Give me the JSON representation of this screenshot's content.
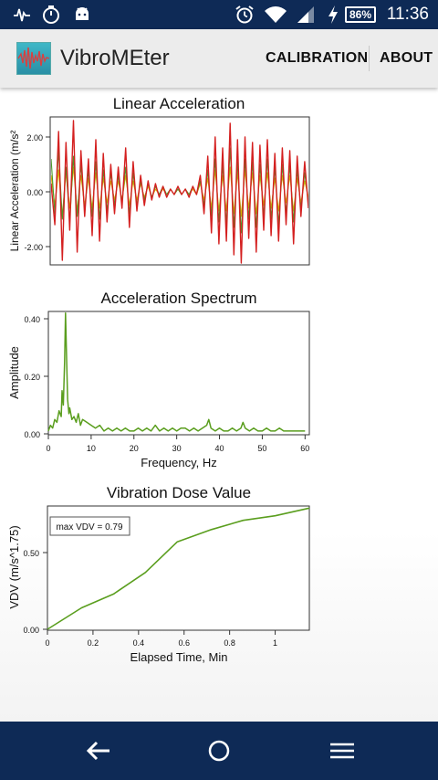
{
  "status_bar": {
    "time": "11:36",
    "battery_percent": "86%",
    "left_icons": [
      "pulse-icon",
      "stopwatch-icon",
      "android-icon"
    ],
    "right_icons": [
      "alarm-icon",
      "wifi-icon",
      "signal-icon",
      "charging-icon"
    ]
  },
  "app_bar": {
    "title": "VibroMEter",
    "menu": {
      "calibration": "CALIBRATION",
      "about": "ABOUT"
    }
  },
  "charts": {
    "acceleration": {
      "title": "Linear Acceleration",
      "ylabel": "Linear Acceleration (m/s²",
      "yticks": [
        "2.00",
        "0.00",
        "-2.00"
      ]
    },
    "spectrum": {
      "title": "Acceleration Spectrum",
      "ylabel": "Amplitude",
      "xlabel": "Frequency, Hz",
      "yticks": [
        "0.40",
        "0.20",
        "0.00"
      ],
      "xticks": [
        "0",
        "10",
        "20",
        "30",
        "40",
        "50",
        "60"
      ]
    },
    "vdv": {
      "title": "Vibration Dose Value",
      "ylabel": "VDV (m/s^1.75)",
      "xlabel": "Elapsed Time, Min",
      "yticks": [
        "0.50",
        "0.00"
      ],
      "xticks": [
        "0",
        "0.2",
        "0.4",
        "0.6",
        "0.8",
        "1"
      ],
      "annotation": "max VDV = 0.79"
    }
  },
  "chart_data": [
    {
      "type": "line",
      "title": "Linear Acceleration",
      "ylabel": "Linear Acceleration (m/s²",
      "ylim": [
        -2.6,
        2.6
      ],
      "series": [
        {
          "color": "#d42020",
          "description_values_note": "oscillating signal",
          "values": [
            0.3,
            -1.2,
            2.2,
            -2.5,
            1.8,
            -1.4,
            2.6,
            -2.2,
            1.5,
            -0.9,
            1.2,
            -1.6,
            1.9,
            -1.8,
            1.4,
            -1.1,
            1.0,
            -0.8,
            0.9,
            -0.6,
            1.6,
            -1.3,
            1.1,
            -0.7,
            0.6,
            -0.5,
            0.4,
            -0.3,
            0.3,
            -0.2,
            0.2,
            -0.2,
            0.1,
            -0.1,
            0.2,
            -0.1,
            0.1,
            -0.2,
            0.2,
            -0.1,
            0.6,
            -0.8,
            1.3,
            -1.5,
            2.0,
            -1.9,
            1.6,
            -1.8,
            2.5,
            -2.3,
            1.9,
            -2.6,
            2.0,
            -1.7,
            1.8,
            -2.2,
            1.7,
            -1.4,
            1.9,
            -1.6,
            1.4,
            -1.8,
            1.6,
            -1.2,
            1.5,
            -1.9,
            1.3,
            -0.9,
            1.1,
            -0.6
          ]
        },
        {
          "color": "#e0b000",
          "values": [
            0.6,
            -0.5,
            0.8,
            -0.9,
            0.7,
            -0.6,
            0.9,
            -0.7,
            0.6,
            -0.5,
            0.5,
            -0.6,
            0.7,
            -0.6,
            0.5,
            -0.4,
            0.4,
            -0.3,
            0.4,
            -0.3,
            0.6,
            -0.5,
            0.4,
            -0.3,
            0.3,
            -0.2,
            0.2,
            -0.2,
            0.1,
            -0.1,
            0.1,
            -0.1,
            0.1,
            -0.1,
            0.1,
            -0.1,
            0.1,
            -0.1,
            0.1,
            -0.1,
            0.3,
            -0.3,
            0.5,
            -0.6,
            0.8,
            -0.7,
            0.6,
            -0.7,
            0.9,
            -0.8,
            0.7,
            -0.9,
            0.8,
            -0.6,
            0.7,
            -0.8,
            0.6,
            -0.5,
            0.7,
            -0.6,
            0.5,
            -0.7,
            0.6,
            -0.4,
            0.6,
            -0.7,
            0.5,
            -0.4,
            0.4,
            -0.2
          ]
        },
        {
          "color": "#4a9a2a",
          "values": [
            1.2,
            -0.8,
            1.5,
            -1.0,
            0.9,
            -1.1,
            1.3,
            -0.9,
            1.0,
            -0.7,
            0.8,
            -0.9,
            1.1,
            -1.0,
            0.8,
            -0.7,
            0.7,
            -0.5,
            0.6,
            -0.4,
            0.9,
            -0.8,
            0.7,
            -0.5,
            0.4,
            -0.3,
            0.3,
            -0.2,
            0.2,
            -0.1,
            0.2,
            -0.1,
            0.1,
            -0.1,
            0.1,
            -0.1,
            0.1,
            -0.1,
            0.2,
            -0.1,
            0.4,
            -0.5,
            0.8,
            -0.9,
            1.2,
            -1.1,
            1.0,
            -1.2,
            1.6,
            -1.3,
            1.1,
            -1.5,
            1.2,
            -1.0,
            1.1,
            -1.3,
            1.0,
            -0.9,
            1.2,
            -1.0,
            0.9,
            -1.2,
            1.0,
            -0.8,
            1.0,
            -1.1,
            0.8,
            -0.6,
            0.7,
            -0.4
          ]
        }
      ]
    },
    {
      "type": "line",
      "title": "Acceleration Spectrum",
      "xlabel": "Frequency, Hz",
      "ylabel": "Amplitude",
      "xlim": [
        0,
        61
      ],
      "ylim": [
        0,
        0.42
      ],
      "series": [
        {
          "color": "#5a9e1e",
          "x": [
            0,
            0.5,
            1,
            1.5,
            2,
            2.5,
            3,
            3.2,
            3.5,
            3.8,
            4.0,
            4.2,
            4.5,
            4.8,
            5,
            5.5,
            6,
            6.5,
            7,
            7.5,
            8,
            9,
            10,
            11,
            12,
            13,
            14,
            15,
            16,
            17,
            18,
            19,
            20,
            21,
            22,
            23,
            24,
            25,
            26,
            27,
            28,
            29,
            30,
            31,
            32,
            33,
            34,
            35,
            36,
            37,
            37.5,
            38,
            39,
            40,
            41,
            42,
            43,
            44,
            45,
            45.5,
            46,
            47,
            48,
            49,
            50,
            51,
            52,
            53,
            54,
            55,
            56,
            57,
            58,
            59,
            60
          ],
          "y": [
            0.01,
            0.03,
            0.02,
            0.05,
            0.04,
            0.08,
            0.06,
            0.15,
            0.1,
            0.25,
            0.42,
            0.3,
            0.12,
            0.07,
            0.09,
            0.05,
            0.06,
            0.04,
            0.07,
            0.03,
            0.05,
            0.04,
            0.03,
            0.02,
            0.03,
            0.01,
            0.02,
            0.01,
            0.02,
            0.01,
            0.02,
            0.01,
            0.01,
            0.02,
            0.01,
            0.02,
            0.01,
            0.03,
            0.01,
            0.02,
            0.01,
            0.02,
            0.01,
            0.02,
            0.02,
            0.01,
            0.02,
            0.01,
            0.02,
            0.03,
            0.05,
            0.02,
            0.01,
            0.02,
            0.01,
            0.01,
            0.02,
            0.01,
            0.02,
            0.04,
            0.02,
            0.01,
            0.02,
            0.01,
            0.01,
            0.02,
            0.01,
            0.01,
            0.02,
            0.01,
            0.01,
            0.01,
            0.01,
            0.01,
            0.01
          ]
        }
      ]
    },
    {
      "type": "line",
      "title": "Vibration Dose Value",
      "xlabel": "Elapsed Time, Min",
      "ylabel": "VDV (m/s^1.75)",
      "xlim": [
        0,
        1.15
      ],
      "ylim": [
        0,
        0.8
      ],
      "annotation": "max VDV = 0.79",
      "series": [
        {
          "color": "#5a9e1e",
          "x": [
            0,
            0.15,
            0.29,
            0.43,
            0.57,
            0.72,
            0.86,
            1.0,
            1.15
          ],
          "y": [
            0,
            0.14,
            0.23,
            0.37,
            0.57,
            0.65,
            0.71,
            0.74,
            0.79
          ]
        }
      ]
    }
  ]
}
